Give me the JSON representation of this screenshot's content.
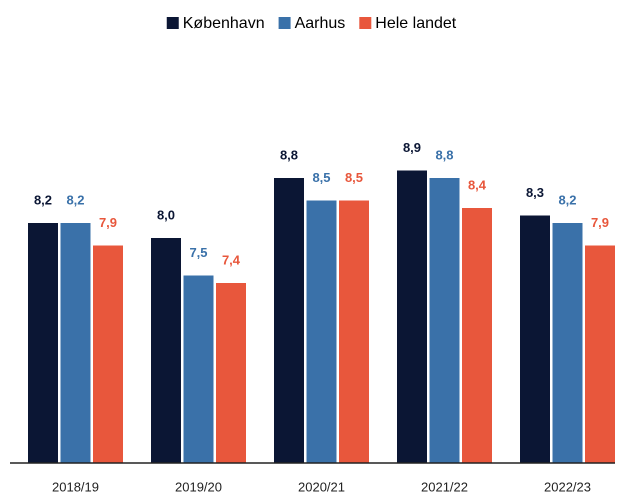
{
  "chart_data": {
    "type": "bar",
    "categories": [
      "2018/19",
      "2019/20",
      "2020/21",
      "2021/22",
      "2022/23"
    ],
    "series": [
      {
        "name": "København",
        "color": "#0b1634",
        "values": [
          8.2,
          8.0,
          8.8,
          8.9,
          8.3
        ],
        "value_labels": [
          "8,2",
          "8,0",
          "8,8",
          "8,9",
          "8,3"
        ]
      },
      {
        "name": "Aarhus",
        "color": "#3a71a9",
        "values": [
          8.2,
          7.5,
          8.5,
          8.8,
          8.2
        ],
        "value_labels": [
          "8,2",
          "7,5",
          "8,5",
          "8,8",
          "8,2"
        ]
      },
      {
        "name": "Hele landet",
        "color": "#e8573c",
        "values": [
          7.9,
          7.4,
          8.5,
          8.4,
          7.9
        ],
        "value_labels": [
          "7,9",
          "7,4",
          "8,5",
          "8,4",
          "7,9"
        ]
      }
    ],
    "ylim": [
      5,
      10
    ],
    "legend": "top"
  }
}
